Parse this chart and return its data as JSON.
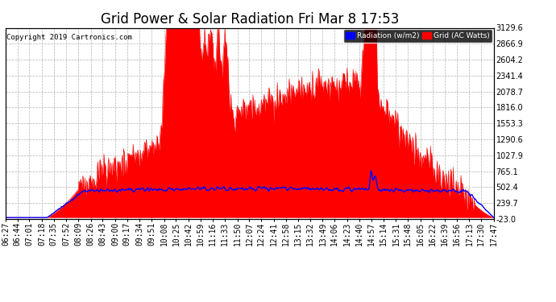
{
  "title": "Grid Power & Solar Radiation Fri Mar 8 17:53",
  "copyright": "Copyright 2019 Cartronics.com",
  "legend_radiation": "Radiation (w/m2)",
  "legend_grid": "Grid (AC Watts)",
  "ylabel_right_ticks": [
    3129.6,
    2866.9,
    2604.2,
    2341.4,
    2078.7,
    1816.0,
    1553.3,
    1290.6,
    1027.9,
    765.1,
    502.4,
    239.7,
    -23.0
  ],
  "ymin": -23.0,
  "ymax": 3129.6,
  "background_color": "#ffffff",
  "plot_bg_color": "#ffffff",
  "grid_color": "#aaaaaa",
  "title_fontsize": 12,
  "tick_label_fontsize": 7,
  "xtick_labels": [
    "06:27",
    "06:44",
    "07:01",
    "07:18",
    "07:35",
    "07:52",
    "08:09",
    "08:26",
    "08:43",
    "09:00",
    "09:17",
    "09:34",
    "09:51",
    "10:08",
    "10:25",
    "10:42",
    "10:59",
    "11:16",
    "11:33",
    "11:50",
    "12:07",
    "12:24",
    "12:41",
    "12:58",
    "13:15",
    "13:32",
    "13:49",
    "14:06",
    "14:23",
    "14:40",
    "14:57",
    "15:14",
    "15:31",
    "15:48",
    "16:05",
    "16:22",
    "16:39",
    "16:56",
    "17:13",
    "17:30",
    "17:47"
  ],
  "n_points": 820,
  "solar_color": "#ff0000",
  "grid_line_color": "#0000ff",
  "solar_alpha": 1.0
}
